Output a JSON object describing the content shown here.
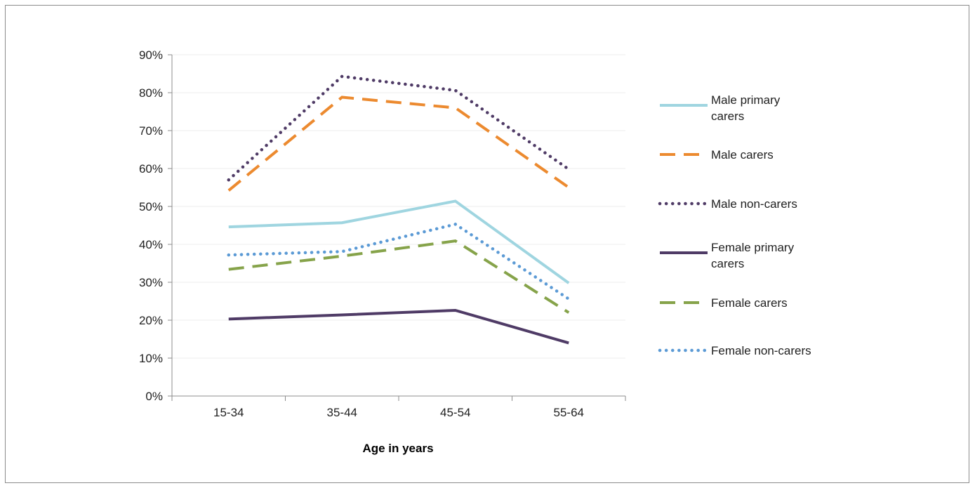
{
  "chart_data": {
    "type": "line",
    "title": "",
    "xlabel": "Age in years",
    "ylabel": "",
    "categories": [
      "15-34",
      "35-44",
      "45-54",
      "55-64"
    ],
    "yticks": [
      "0%",
      "10%",
      "20%",
      "30%",
      "40%",
      "50%",
      "60%",
      "70%",
      "80%",
      "90%"
    ],
    "ylim": [
      0,
      90
    ],
    "grid": true,
    "legend_position": "right",
    "series": [
      {
        "name": "Male primary carers",
        "legend_lines": [
          "Male primary",
          "carers"
        ],
        "values": [
          44.6,
          45.7,
          51.4,
          29.8
        ],
        "color": "#9fd5e0",
        "style": "solid"
      },
      {
        "name": "Male carers",
        "legend_lines": [
          "Male carers"
        ],
        "values": [
          54.2,
          78.8,
          76.0,
          55.0
        ],
        "color": "#ec8a2f",
        "style": "dashed"
      },
      {
        "name": "Male non-carers",
        "legend_lines": [
          "Male non-carers"
        ],
        "values": [
          57.0,
          84.3,
          80.6,
          59.8
        ],
        "color": "#4f3b66",
        "style": "dotted"
      },
      {
        "name": "Female primary carers",
        "legend_lines": [
          "Female primary",
          "carers"
        ],
        "values": [
          20.3,
          21.4,
          22.6,
          14.0
        ],
        "color": "#4f3b66",
        "style": "solid"
      },
      {
        "name": "Female carers",
        "legend_lines": [
          "Female carers"
        ],
        "values": [
          33.4,
          36.9,
          40.9,
          22.0
        ],
        "color": "#86a34a",
        "style": "dashed"
      },
      {
        "name": "Female non-carers",
        "legend_lines": [
          "Female non-carers"
        ],
        "values": [
          37.2,
          38.1,
          45.3,
          25.6
        ],
        "color": "#5b9ad5",
        "style": "dotted"
      }
    ]
  }
}
